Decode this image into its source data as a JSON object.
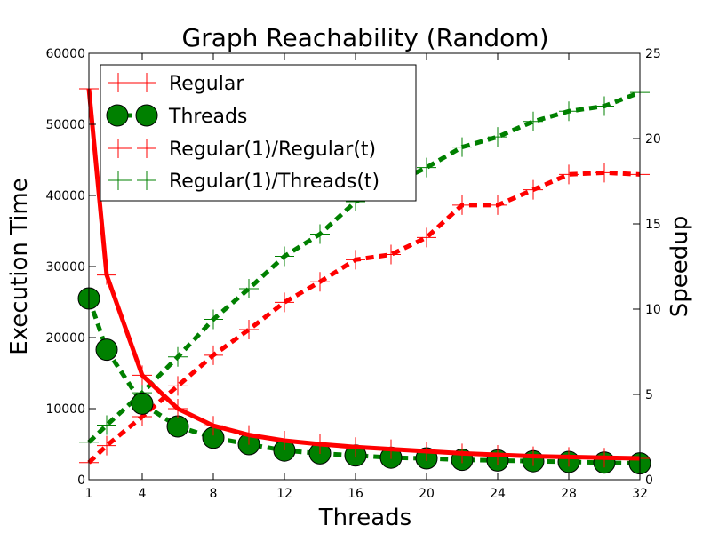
{
  "chart_data": {
    "type": "line",
    "title": "Graph Reachability (Random)",
    "xlabel": "Threads",
    "ylabel": "Execution Time",
    "y2label": "Speedup",
    "xlim": [
      1,
      32
    ],
    "ylim": [
      0,
      60000
    ],
    "y2lim": [
      0,
      25
    ],
    "x_ticks": [
      1,
      4,
      8,
      12,
      16,
      20,
      24,
      28,
      32
    ],
    "y_ticks": [
      0,
      10000,
      20000,
      30000,
      40000,
      50000,
      60000
    ],
    "y2_ticks": [
      0,
      5,
      10,
      15,
      20,
      25
    ],
    "grid": false,
    "legend_position": "top-left",
    "series": [
      {
        "name": "Regular",
        "axis": "left",
        "color": "#ff0000",
        "style": "solid",
        "marker": "plus",
        "x": [
          1,
          2,
          4,
          6,
          8,
          10,
          12,
          14,
          16,
          18,
          20,
          22,
          24,
          26,
          28,
          30,
          32
        ],
        "values": [
          55000,
          28800,
          14700,
          10000,
          7600,
          6300,
          5500,
          5000,
          4600,
          4300,
          4000,
          3700,
          3500,
          3300,
          3200,
          3100,
          3000
        ]
      },
      {
        "name": "Threads",
        "axis": "left",
        "color": "#008000",
        "style": "dashed",
        "marker": "circle",
        "x": [
          1,
          2,
          4,
          6,
          8,
          10,
          12,
          14,
          16,
          18,
          20,
          22,
          24,
          26,
          28,
          30,
          32
        ],
        "values": [
          25500,
          18300,
          10700,
          7500,
          5900,
          5000,
          4100,
          3700,
          3400,
          3100,
          3000,
          2800,
          2700,
          2600,
          2500,
          2400,
          2300
        ]
      },
      {
        "name": "Regular(1)/Regular(t)",
        "axis": "right",
        "color": "#ff0000",
        "style": "dashed",
        "marker": "plus",
        "x": [
          1,
          2,
          4,
          6,
          8,
          10,
          12,
          14,
          16,
          18,
          20,
          22,
          24,
          26,
          28,
          30,
          32
        ],
        "values": [
          1.0,
          2.0,
          3.7,
          5.5,
          7.3,
          8.8,
          10.4,
          11.6,
          12.9,
          13.2,
          14.2,
          16.1,
          16.1,
          17.0,
          17.9,
          18.0,
          17.9
        ]
      },
      {
        "name": "Regular(1)/Threads(t)",
        "axis": "right",
        "color": "#008000",
        "style": "dashed",
        "marker": "plus",
        "x": [
          1,
          2,
          4,
          6,
          8,
          10,
          12,
          14,
          16,
          18,
          20,
          22,
          24,
          26,
          28,
          30,
          32
        ],
        "values": [
          2.2,
          3.2,
          5.1,
          7.2,
          9.4,
          11.2,
          13.1,
          14.4,
          16.3,
          17.3,
          18.3,
          19.5,
          20.1,
          21.0,
          21.6,
          21.9,
          22.7
        ]
      }
    ]
  }
}
